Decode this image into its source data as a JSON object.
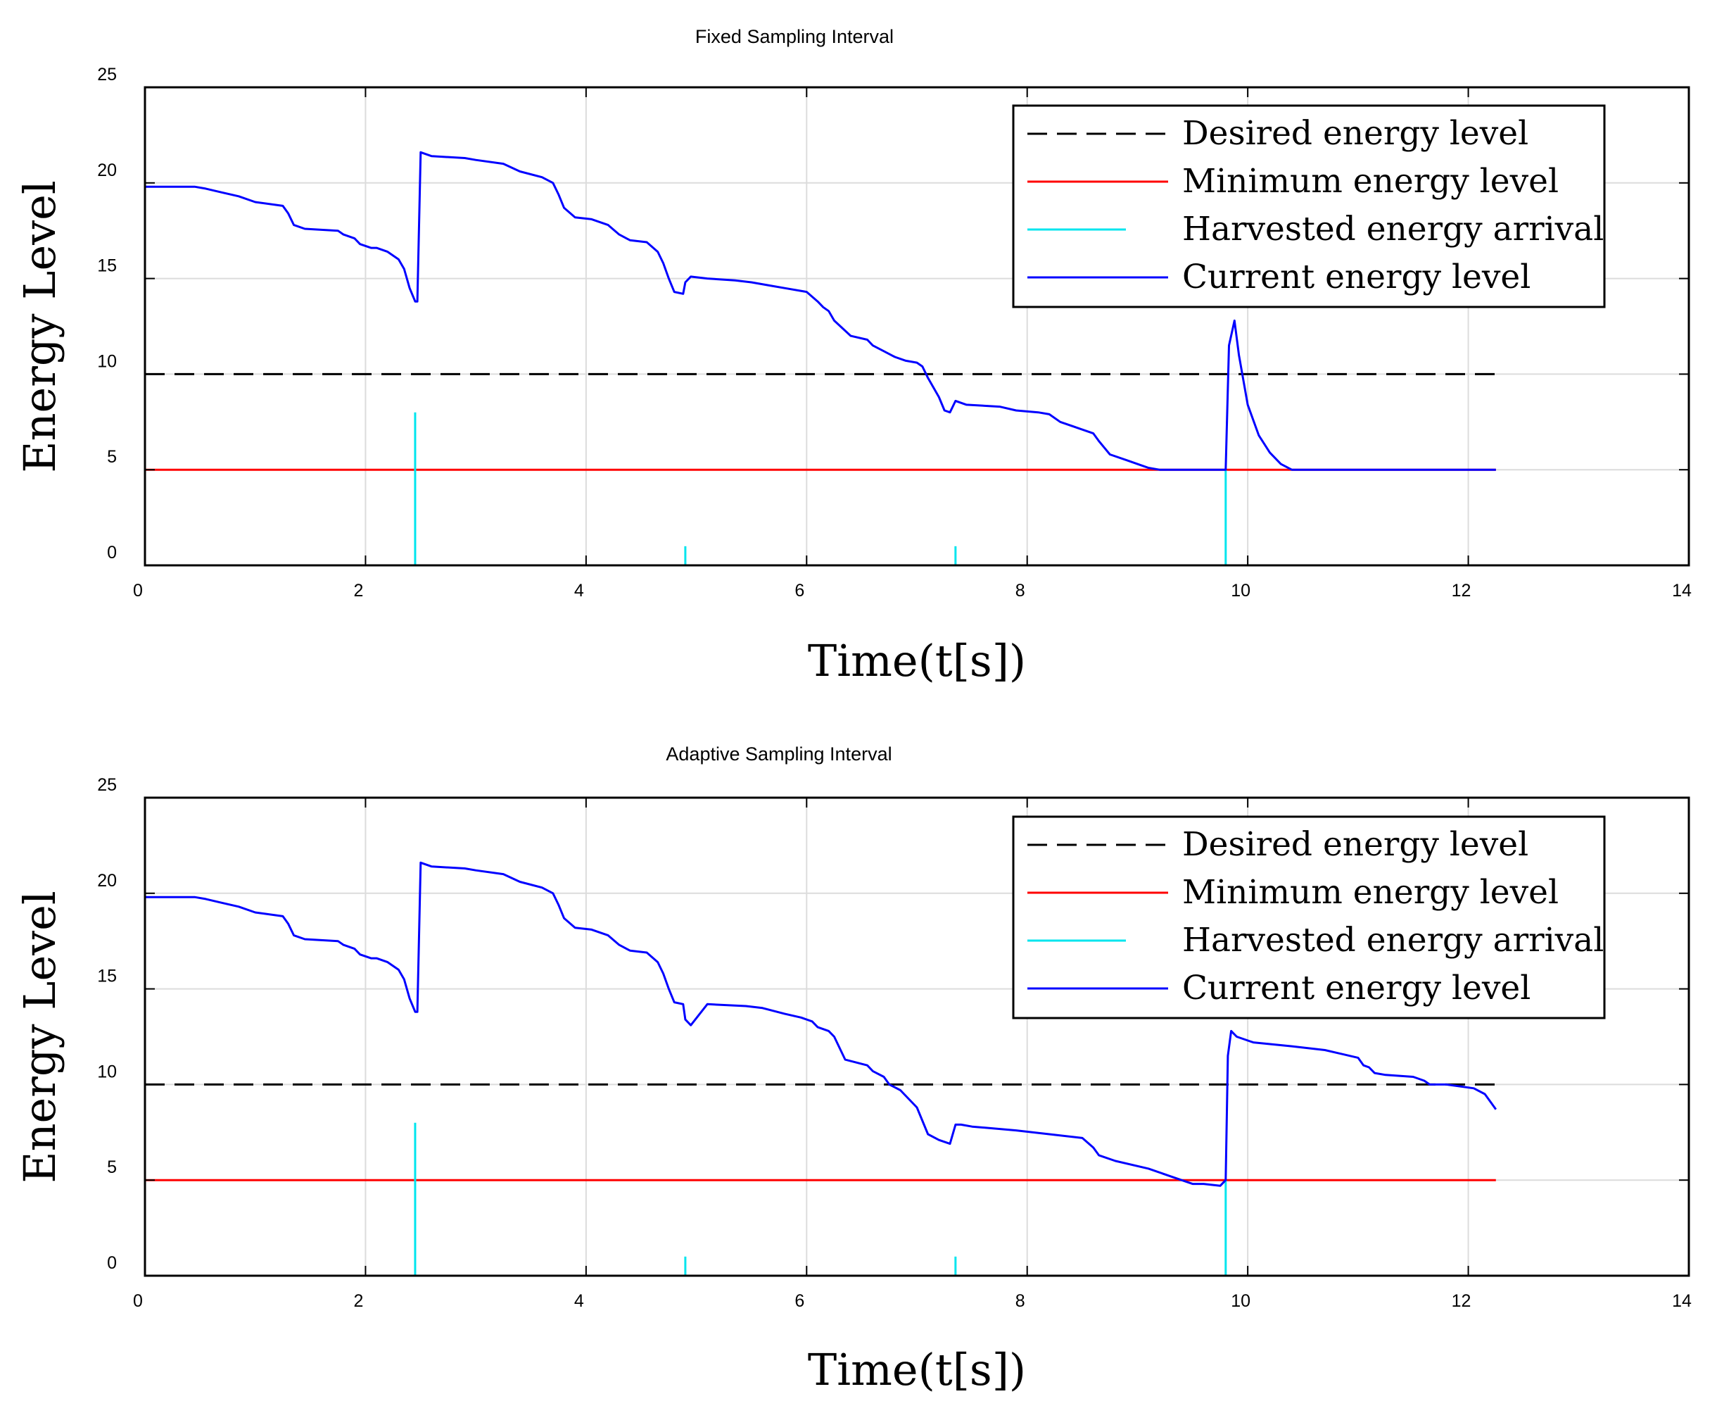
{
  "chart_data": [
    {
      "type": "line",
      "title": "Fixed Sampling Interval",
      "xlabel": "Time(t[s])",
      "ylabel": "Energy Level",
      "xlim": [
        0,
        14
      ],
      "ylim": [
        0,
        25
      ],
      "xticks": [
        0,
        2,
        4,
        6,
        8,
        10,
        12,
        14
      ],
      "yticks": [
        0,
        5,
        10,
        15,
        20,
        25
      ],
      "grid": true,
      "legend_position": "top-right",
      "series": [
        {
          "name": "Desired energy level",
          "style": "dashed",
          "color": "#000000",
          "x": [
            0,
            12.25
          ],
          "y": [
            10,
            10
          ]
        },
        {
          "name": "Minimum energy level",
          "style": "solid",
          "color": "#ff0000",
          "x": [
            0,
            12.25
          ],
          "y": [
            5,
            5
          ]
        },
        {
          "name": "Harvested energy arrival",
          "style": "stem",
          "color": "#00e5ee",
          "x": [
            2.45,
            4.9,
            7.35,
            9.8
          ],
          "y": [
            8,
            1,
            1,
            5
          ]
        },
        {
          "name": "Current energy level",
          "style": "solid",
          "color": "#0000ff",
          "x": [
            0,
            0.45,
            0.55,
            0.7,
            0.85,
            1.0,
            1.25,
            1.3,
            1.35,
            1.45,
            1.75,
            1.8,
            1.9,
            1.95,
            2.05,
            2.1,
            2.2,
            2.3,
            2.35,
            2.4,
            2.45,
            2.47,
            2.5,
            2.6,
            2.9,
            3.0,
            3.25,
            3.4,
            3.6,
            3.7,
            3.75,
            3.8,
            3.9,
            4.05,
            4.2,
            4.3,
            4.4,
            4.55,
            4.65,
            4.7,
            4.75,
            4.8,
            4.88,
            4.9,
            4.95,
            5.1,
            5.35,
            5.5,
            5.7,
            5.8,
            6.0,
            6.1,
            6.15,
            6.2,
            6.25,
            6.4,
            6.55,
            6.6,
            6.7,
            6.8,
            6.9,
            7.0,
            7.05,
            7.1,
            7.2,
            7.25,
            7.3,
            7.35,
            7.45,
            7.75,
            7.9,
            8.1,
            8.2,
            8.3,
            8.45,
            8.6,
            8.65,
            8.75,
            8.9,
            9.05,
            9.1,
            9.2,
            9.4,
            9.78,
            9.8,
            9.83,
            9.88,
            9.92,
            10.0,
            10.1,
            10.2,
            10.3,
            10.4,
            12.25
          ],
          "y": [
            19.8,
            19.8,
            19.7,
            19.5,
            19.3,
            19.0,
            18.8,
            18.4,
            17.8,
            17.6,
            17.5,
            17.3,
            17.1,
            16.8,
            16.6,
            16.6,
            16.4,
            16.0,
            15.5,
            14.5,
            13.8,
            13.8,
            21.6,
            21.4,
            21.3,
            21.2,
            21.0,
            20.6,
            20.3,
            20.0,
            19.4,
            18.7,
            18.2,
            18.1,
            17.8,
            17.3,
            17.0,
            16.9,
            16.4,
            15.8,
            15.0,
            14.3,
            14.2,
            14.8,
            15.1,
            15.0,
            14.9,
            14.8,
            14.6,
            14.5,
            14.3,
            13.8,
            13.5,
            13.3,
            12.8,
            12.0,
            11.8,
            11.5,
            11.2,
            10.9,
            10.7,
            10.6,
            10.4,
            9.8,
            8.8,
            8.1,
            8.0,
            8.6,
            8.4,
            8.3,
            8.1,
            8.0,
            7.9,
            7.5,
            7.2,
            6.9,
            6.5,
            5.8,
            5.5,
            5.2,
            5.1,
            5.0,
            5.0,
            5.0,
            5.0,
            11.5,
            12.8,
            11.0,
            8.4,
            6.8,
            5.9,
            5.3,
            5.0,
            5.0
          ]
        }
      ]
    },
    {
      "type": "line",
      "title": "Adaptive Sampling Interval",
      "xlabel": "Time(t[s])",
      "ylabel": "Energy Level",
      "xlim": [
        0,
        14
      ],
      "ylim": [
        0,
        25
      ],
      "xticks": [
        0,
        2,
        4,
        6,
        8,
        10,
        12,
        14
      ],
      "yticks": [
        0,
        5,
        10,
        15,
        20,
        25
      ],
      "grid": true,
      "legend_position": "top-right",
      "series": [
        {
          "name": "Desired energy level",
          "style": "dashed",
          "color": "#000000",
          "x": [
            0,
            12.25
          ],
          "y": [
            10,
            10
          ]
        },
        {
          "name": "Minimum energy level",
          "style": "solid",
          "color": "#ff0000",
          "x": [
            0,
            12.25
          ],
          "y": [
            5,
            5
          ]
        },
        {
          "name": "Harvested energy arrival",
          "style": "stem",
          "color": "#00e5ee",
          "x": [
            2.45,
            4.9,
            7.35,
            9.8
          ],
          "y": [
            8,
            1,
            1,
            5
          ]
        },
        {
          "name": "Current energy level",
          "style": "solid",
          "color": "#0000ff",
          "x": [
            0,
            0.45,
            0.55,
            0.7,
            0.85,
            1.0,
            1.25,
            1.3,
            1.35,
            1.45,
            1.75,
            1.8,
            1.9,
            1.95,
            2.05,
            2.1,
            2.2,
            2.3,
            2.35,
            2.4,
            2.45,
            2.47,
            2.5,
            2.6,
            2.9,
            3.0,
            3.25,
            3.4,
            3.6,
            3.7,
            3.75,
            3.8,
            3.9,
            4.05,
            4.2,
            4.3,
            4.4,
            4.55,
            4.65,
            4.7,
            4.75,
            4.8,
            4.88,
            4.9,
            4.95,
            5.1,
            5.45,
            5.6,
            5.8,
            5.95,
            6.05,
            6.1,
            6.2,
            6.25,
            6.35,
            6.55,
            6.6,
            6.7,
            6.75,
            6.85,
            7.0,
            7.1,
            7.2,
            7.3,
            7.35,
            7.4,
            7.5,
            7.9,
            8.2,
            8.5,
            8.6,
            8.65,
            8.8,
            9.1,
            9.3,
            9.5,
            9.6,
            9.75,
            9.8,
            9.82,
            9.85,
            9.9,
            10.05,
            10.4,
            10.7,
            11.0,
            11.05,
            11.1,
            11.15,
            11.25,
            11.5,
            11.6,
            11.65,
            11.8,
            12.05,
            12.15,
            12.2,
            12.25
          ],
          "y": [
            19.8,
            19.8,
            19.7,
            19.5,
            19.3,
            19.0,
            18.8,
            18.4,
            17.8,
            17.6,
            17.5,
            17.3,
            17.1,
            16.8,
            16.6,
            16.6,
            16.4,
            16.0,
            15.5,
            14.5,
            13.8,
            13.8,
            21.6,
            21.4,
            21.3,
            21.2,
            21.0,
            20.6,
            20.3,
            20.0,
            19.4,
            18.7,
            18.2,
            18.1,
            17.8,
            17.3,
            17.0,
            16.9,
            16.4,
            15.8,
            15.0,
            14.3,
            14.2,
            13.4,
            13.1,
            14.2,
            14.1,
            14.0,
            13.7,
            13.5,
            13.3,
            13.0,
            12.8,
            12.5,
            11.3,
            11.0,
            10.7,
            10.4,
            10.0,
            9.7,
            8.8,
            7.4,
            7.1,
            6.9,
            7.9,
            7.9,
            7.8,
            7.6,
            7.4,
            7.2,
            6.7,
            6.3,
            6.0,
            5.6,
            5.2,
            4.8,
            4.8,
            4.7,
            5.0,
            11.5,
            12.8,
            12.5,
            12.2,
            12.0,
            11.8,
            11.4,
            11.0,
            10.9,
            10.6,
            10.5,
            10.4,
            10.2,
            10.0,
            10.0,
            9.8,
            9.5,
            9.1,
            8.7
          ]
        }
      ]
    }
  ]
}
